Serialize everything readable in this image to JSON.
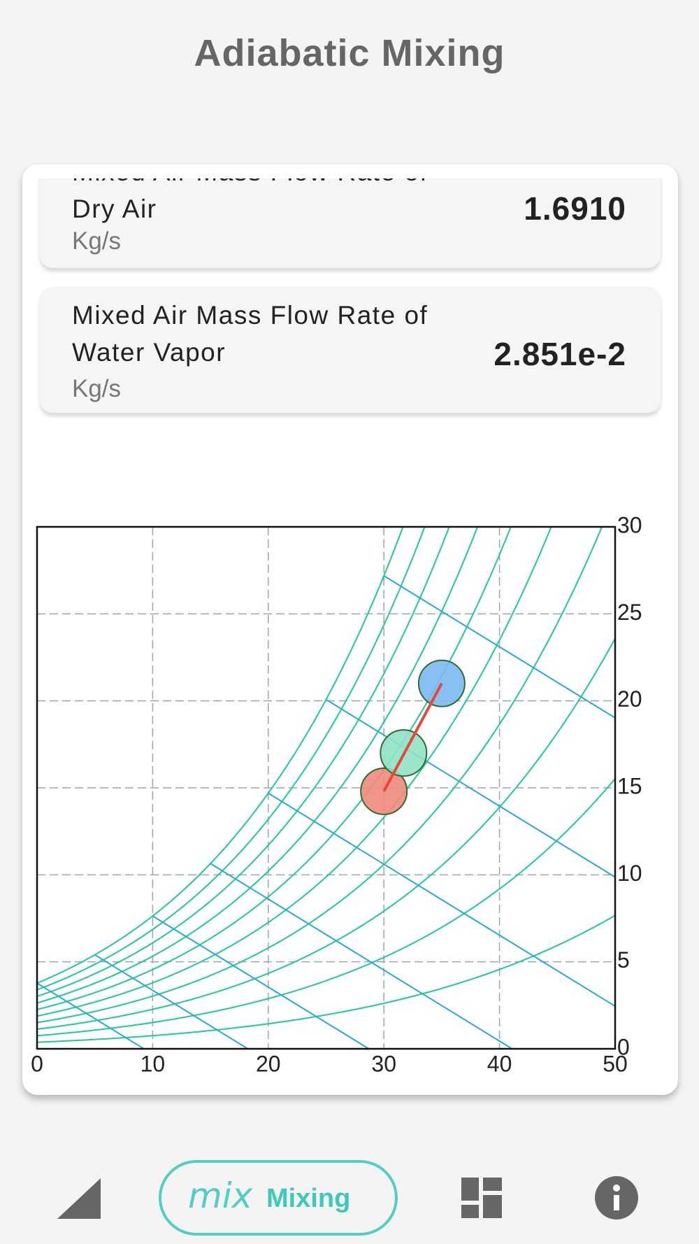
{
  "header": {
    "title": "Adiabatic Mixing"
  },
  "cards": [
    {
      "label": "Mixed Air Mass Flow Rate of Dry Air",
      "value": "1.6910",
      "unit": "Kg/s"
    },
    {
      "label": "Mixed Air Mass Flow Rate of Water Vapor",
      "value": "2.851e-2",
      "unit": "Kg/s"
    }
  ],
  "chart_data": {
    "type": "psychrometric",
    "xlim": [
      0,
      50
    ],
    "xticks": [
      0,
      10,
      20,
      30,
      40,
      50
    ],
    "ylim": [
      0,
      30
    ],
    "yticks": [
      0,
      5,
      10,
      15,
      20,
      25,
      30
    ],
    "grid": true,
    "points": {
      "x": [
        30,
        31.7,
        35
      ],
      "y": [
        14.8,
        17.0,
        21.0
      ],
      "colors": [
        "#f1897c",
        "#8fe2c6",
        "#7cb9f2"
      ]
    },
    "mixing_line_color": "#e8453c"
  },
  "nav": {
    "mix_icon": "mix",
    "mixing": "Mixing"
  }
}
